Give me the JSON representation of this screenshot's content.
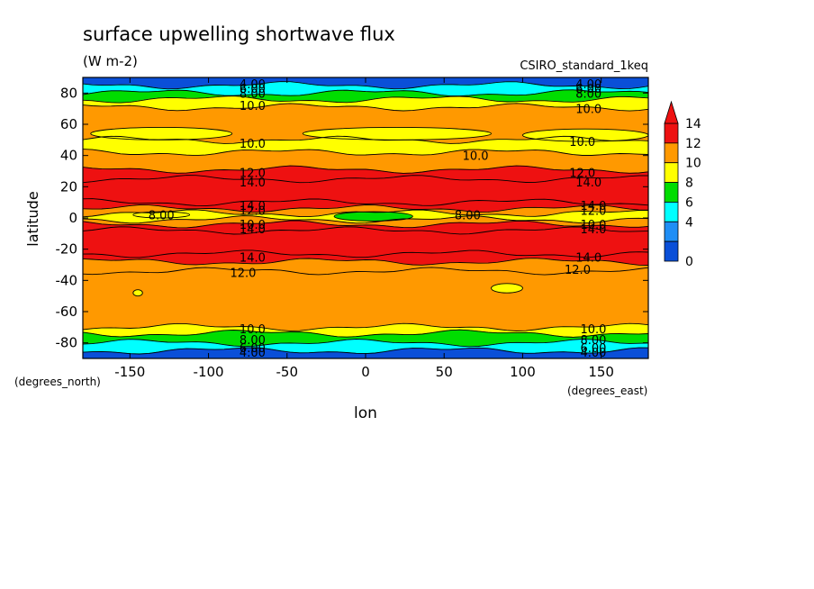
{
  "chart_data": {
    "type": "heatmap",
    "title": "surface upwelling shortwave flux",
    "units": "(W m-2)",
    "dataset_label": "CSIRO_standard_1keq",
    "xlabel": "lon",
    "ylabel": "latitude",
    "x_unit_label": "(degrees_east)",
    "y_unit_label": "(degrees_north)",
    "xlim": [
      -180,
      180
    ],
    "ylim": [
      -90,
      90
    ],
    "x_ticks": [
      -150,
      -100,
      -50,
      0,
      50,
      100,
      150
    ],
    "x_tick_labels": [
      "-150",
      "-100",
      "-50",
      "0",
      "50",
      "100",
      "150"
    ],
    "y_ticks": [
      80,
      60,
      40,
      20,
      0,
      -20,
      -40,
      -60,
      -80
    ],
    "y_tick_labels": [
      "80",
      "60",
      "40",
      "20",
      "0",
      "-20",
      "-40",
      "-60",
      "-80"
    ],
    "colorbar": {
      "levels": [
        0,
        2,
        4,
        6,
        8,
        10,
        12,
        14
      ],
      "tick_labels": [
        "0",
        "4",
        "6",
        "8",
        "10",
        "12",
        "14"
      ],
      "tick_values": [
        0,
        4,
        6,
        8,
        10,
        12,
        14
      ],
      "colors": [
        "#0a4fd8",
        "#1f8ef5",
        "#00ffff",
        "#00dd00",
        "#ffff00",
        "#ff9900",
        "#ee1111"
      ],
      "extend": "max"
    },
    "bands": [
      {
        "lat_from": 90,
        "lat_to": 85,
        "value": 1
      },
      {
        "lat_from": 85,
        "lat_to": 80,
        "value": 4.5
      },
      {
        "lat_from": 80,
        "lat_to": 76,
        "value": 7
      },
      {
        "lat_from": 76,
        "lat_to": 71,
        "value": 9
      },
      {
        "lat_from": 71,
        "lat_to": 50,
        "value": 11
      },
      {
        "lat_from": 50,
        "lat_to": 42,
        "value": 9
      },
      {
        "lat_from": 42,
        "lat_to": 31,
        "value": 11
      },
      {
        "lat_from": 31,
        "lat_to": 25,
        "value": 13
      },
      {
        "lat_from": 25,
        "lat_to": 10,
        "value": 15
      },
      {
        "lat_from": 10,
        "lat_to": 6,
        "value": 13
      },
      {
        "lat_from": 6,
        "lat_to": 3,
        "value": 11
      },
      {
        "lat_from": 3,
        "lat_to": -1,
        "value": 9
      },
      {
        "lat_from": -1,
        "lat_to": -4,
        "value": 11
      },
      {
        "lat_from": -4,
        "lat_to": -8,
        "value": 13
      },
      {
        "lat_from": -8,
        "lat_to": -23,
        "value": 15
      },
      {
        "lat_from": -23,
        "lat_to": -28,
        "value": 13
      },
      {
        "lat_from": -28,
        "lat_to": -34,
        "value": 11
      },
      {
        "lat_from": -34,
        "lat_to": -70,
        "value": 11
      },
      {
        "lat_from": -70,
        "lat_to": -74,
        "value": 9
      },
      {
        "lat_from": -74,
        "lat_to": -80,
        "value": 7
      },
      {
        "lat_from": -80,
        "lat_to": -85,
        "value": 4.5
      },
      {
        "lat_from": -85,
        "lat_to": -90,
        "value": 1
      }
    ],
    "patches": [
      {
        "lon": -130,
        "lat": 54,
        "rlon": 45,
        "rlat": 4,
        "value": 9
      },
      {
        "lon": 20,
        "lat": 54,
        "rlon": 60,
        "rlat": 4,
        "value": 9
      },
      {
        "lon": 140,
        "lat": 53,
        "rlon": 40,
        "rlat": 4,
        "value": 9
      },
      {
        "lon": 90,
        "lat": -45,
        "rlon": 10,
        "rlat": 3,
        "value": 9
      },
      {
        "lon": -145,
        "lat": -48,
        "rlon": 3,
        "rlat": 2,
        "value": 9
      },
      {
        "lon": 5,
        "lat": 1,
        "rlon": 25,
        "rlat": 3,
        "value": 7
      },
      {
        "lon": -130,
        "lat": 2,
        "rlon": 18,
        "rlat": 2,
        "value": 9
      }
    ],
    "contour_labels": [
      {
        "lon": -72,
        "lat": 86,
        "text": "4.00"
      },
      {
        "lon": -72,
        "lat": 83,
        "text": "6.00"
      },
      {
        "lon": -72,
        "lat": 80,
        "text": "8.00"
      },
      {
        "lon": -72,
        "lat": 72,
        "text": "10.0"
      },
      {
        "lon": 142,
        "lat": 86,
        "text": "4.00"
      },
      {
        "lon": 142,
        "lat": 83,
        "text": "6.00"
      },
      {
        "lon": 142,
        "lat": 80,
        "text": "8.00"
      },
      {
        "lon": 142,
        "lat": 70,
        "text": "10.0"
      },
      {
        "lon": -72,
        "lat": 48,
        "text": "10.0"
      },
      {
        "lon": 138,
        "lat": 49,
        "text": "10.0"
      },
      {
        "lon": 70,
        "lat": 40,
        "text": "10.0"
      },
      {
        "lon": -72,
        "lat": 29,
        "text": "12.0"
      },
      {
        "lon": -72,
        "lat": 23,
        "text": "14.0"
      },
      {
        "lon": 138,
        "lat": 29,
        "text": "12.0"
      },
      {
        "lon": 142,
        "lat": 23,
        "text": "14.0"
      },
      {
        "lon": -72,
        "lat": 8,
        "text": "14.0"
      },
      {
        "lon": -72,
        "lat": 5,
        "text": "12.0"
      },
      {
        "lon": -72,
        "lat": -4,
        "text": "10.0"
      },
      {
        "lon": -72,
        "lat": -7,
        "text": "14.0"
      },
      {
        "lon": 145,
        "lat": 8,
        "text": "14.0"
      },
      {
        "lon": 145,
        "lat": 5,
        "text": "12.0"
      },
      {
        "lon": 145,
        "lat": -4,
        "text": "10.0"
      },
      {
        "lon": 145,
        "lat": -7,
        "text": "14.0"
      },
      {
        "lon": -130,
        "lat": 2,
        "text": "8.00"
      },
      {
        "lon": 65,
        "lat": 2,
        "text": "8.00"
      },
      {
        "lon": -72,
        "lat": -25,
        "text": "14.0"
      },
      {
        "lon": -78,
        "lat": -35,
        "text": "12.0"
      },
      {
        "lon": 142,
        "lat": -25,
        "text": "14.0"
      },
      {
        "lon": 135,
        "lat": -33,
        "text": "12.0"
      },
      {
        "lon": -72,
        "lat": -71,
        "text": "10.0"
      },
      {
        "lon": -72,
        "lat": -78,
        "text": "8.00"
      },
      {
        "lon": -72,
        "lat": -83,
        "text": "6.00"
      },
      {
        "lon": -72,
        "lat": -86,
        "text": "4.00"
      },
      {
        "lon": 145,
        "lat": -71,
        "text": "10.0"
      },
      {
        "lon": 145,
        "lat": -78,
        "text": "8.00"
      },
      {
        "lon": 145,
        "lat": -83,
        "text": "6.00"
      },
      {
        "lon": 145,
        "lat": -86,
        "text": "4.00"
      }
    ]
  }
}
